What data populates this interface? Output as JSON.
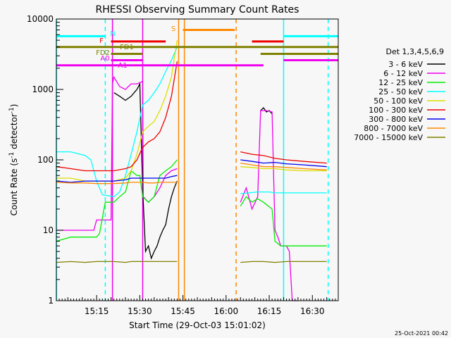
{
  "chart_data": {
    "type": "line",
    "title": "RHESSI Observing Summary Count Rates",
    "xlabel": "Start Time (29-Oct-03 15:01:02)",
    "ylabel_parts": [
      "Count Rate (s",
      "-1",
      " detector",
      "-1",
      ")"
    ],
    "yscale": "log",
    "xlim": [
      0,
      98
    ],
    "ylim": [
      1,
      10000
    ],
    "x_ticks": [
      {
        "x": 14,
        "label": "15:15"
      },
      {
        "x": 29,
        "label": "15:30"
      },
      {
        "x": 44,
        "label": "15:45"
      },
      {
        "x": 59,
        "label": "16:00"
      },
      {
        "x": 74,
        "label": "16:15"
      },
      {
        "x": 89,
        "label": "16:30"
      }
    ],
    "y_ticks": [
      {
        "y": 1,
        "label": "1"
      },
      {
        "y": 10,
        "label": "10"
      },
      {
        "y": 100,
        "label": "100"
      },
      {
        "y": 1000,
        "label": "1000"
      },
      {
        "y": 10000,
        "label": "10000"
      }
    ],
    "legend_title": "Det 1,3,4,5,6,9",
    "timestamp": "25-Oct-2021 00:42",
    "series": [
      {
        "name": "3 - 6 keV",
        "color": "#000000",
        "points": [
          [
            20,
            900
          ],
          [
            22,
            800
          ],
          [
            24,
            700
          ],
          [
            26,
            800
          ],
          [
            28,
            1000
          ],
          [
            29,
            1200
          ],
          [
            30,
            40
          ],
          [
            31,
            5
          ],
          [
            32,
            6
          ],
          [
            33,
            4
          ],
          [
            34,
            5
          ],
          [
            35,
            6
          ],
          [
            36,
            8
          ],
          [
            37,
            10
          ],
          [
            38,
            12
          ],
          [
            39,
            20
          ],
          [
            40,
            30
          ],
          [
            41,
            40
          ],
          [
            42,
            50
          ],
          [
            null,
            null
          ],
          [
            71,
            500
          ],
          [
            72,
            550
          ],
          [
            73,
            480
          ],
          [
            74,
            500
          ],
          [
            75,
            450
          ]
        ]
      },
      {
        "name": "6 - 12 keV",
        "color": "#ee00ee",
        "points": [
          [
            0,
            10
          ],
          [
            10,
            10
          ],
          [
            13,
            10
          ],
          [
            14,
            14
          ],
          [
            16,
            14
          ],
          [
            19,
            14
          ],
          [
            19.5,
            1200
          ],
          [
            20,
            1500
          ],
          [
            22,
            1100
          ],
          [
            24,
            1000
          ],
          [
            26,
            1200
          ],
          [
            28,
            1200
          ],
          [
            30,
            1300
          ],
          [
            30.2,
            30
          ],
          [
            32,
            25
          ],
          [
            34,
            30
          ],
          [
            36,
            40
          ],
          [
            38,
            60
          ],
          [
            40,
            70
          ],
          [
            42,
            75
          ],
          [
            null,
            null
          ],
          [
            64,
            25
          ],
          [
            66,
            40
          ],
          [
            68,
            20
          ],
          [
            70,
            30
          ],
          [
            71,
            500
          ],
          [
            73,
            500
          ],
          [
            75,
            480
          ],
          [
            76,
            10
          ],
          [
            77,
            8
          ],
          [
            78,
            6
          ],
          [
            80,
            6
          ],
          [
            81,
            5
          ],
          [
            82,
            1
          ],
          [
            84,
            1
          ]
        ]
      },
      {
        "name": "12 - 25 keV",
        "color": "#00ee00",
        "points": [
          [
            0,
            7
          ],
          [
            5,
            8
          ],
          [
            10,
            8
          ],
          [
            14,
            8
          ],
          [
            15,
            9
          ],
          [
            17,
            25
          ],
          [
            20,
            25
          ],
          [
            22,
            30
          ],
          [
            24,
            35
          ],
          [
            26,
            70
          ],
          [
            28,
            60
          ],
          [
            29,
            60
          ],
          [
            30,
            30
          ],
          [
            32,
            25
          ],
          [
            34,
            30
          ],
          [
            36,
            60
          ],
          [
            38,
            70
          ],
          [
            40,
            80
          ],
          [
            42,
            100
          ],
          [
            null,
            null
          ],
          [
            64,
            22
          ],
          [
            66,
            30
          ],
          [
            68,
            25
          ],
          [
            70,
            28
          ],
          [
            72,
            25
          ],
          [
            75,
            20
          ],
          [
            76,
            7
          ],
          [
            78,
            6
          ],
          [
            80,
            6
          ],
          [
            86,
            6
          ],
          [
            90,
            6
          ],
          [
            94,
            6
          ]
        ]
      },
      {
        "name": "25 - 50 keV",
        "color": "#00ffff",
        "points": [
          [
            0,
            130
          ],
          [
            5,
            130
          ],
          [
            10,
            115
          ],
          [
            12,
            100
          ],
          [
            13,
            70
          ],
          [
            14,
            50
          ],
          [
            16,
            32
          ],
          [
            20,
            30
          ],
          [
            22,
            35
          ],
          [
            24,
            60
          ],
          [
            26,
            120
          ],
          [
            28,
            250
          ],
          [
            30,
            600
          ],
          [
            32,
            700
          ],
          [
            34,
            900
          ],
          [
            36,
            1200
          ],
          [
            38,
            1800
          ],
          [
            40,
            2600
          ],
          [
            42,
            4000
          ],
          [
            null,
            null
          ],
          [
            64,
            33
          ],
          [
            70,
            35
          ],
          [
            74,
            35
          ],
          [
            76,
            34
          ],
          [
            80,
            34
          ],
          [
            86,
            34
          ],
          [
            94,
            34
          ]
        ]
      },
      {
        "name": "50 - 100 keV",
        "color": "#dddd00",
        "points": [
          [
            0,
            55
          ],
          [
            5,
            55
          ],
          [
            10,
            50
          ],
          [
            14,
            50
          ],
          [
            20,
            50
          ],
          [
            24,
            55
          ],
          [
            26,
            70
          ],
          [
            28,
            120
          ],
          [
            30,
            250
          ],
          [
            32,
            300
          ],
          [
            34,
            350
          ],
          [
            36,
            500
          ],
          [
            38,
            800
          ],
          [
            40,
            1500
          ],
          [
            42,
            5000
          ],
          [
            null,
            null
          ],
          [
            64,
            80
          ],
          [
            68,
            78
          ],
          [
            72,
            75
          ],
          [
            76,
            75
          ],
          [
            80,
            72
          ],
          [
            86,
            70
          ],
          [
            94,
            70
          ]
        ]
      },
      {
        "name": "100 - 300 keV",
        "color": "#ee0000",
        "points": [
          [
            0,
            80
          ],
          [
            5,
            75
          ],
          [
            10,
            70
          ],
          [
            14,
            70
          ],
          [
            20,
            70
          ],
          [
            24,
            75
          ],
          [
            26,
            80
          ],
          [
            28,
            100
          ],
          [
            30,
            150
          ],
          [
            32,
            180
          ],
          [
            34,
            200
          ],
          [
            36,
            250
          ],
          [
            38,
            400
          ],
          [
            40,
            800
          ],
          [
            42,
            2500
          ],
          [
            null,
            null
          ],
          [
            64,
            130
          ],
          [
            68,
            120
          ],
          [
            72,
            115
          ],
          [
            76,
            105
          ],
          [
            80,
            100
          ],
          [
            86,
            95
          ],
          [
            94,
            90
          ]
        ]
      },
      {
        "name": "300 - 800 keV",
        "color": "#0000ee",
        "points": [
          [
            0,
            50
          ],
          [
            5,
            48
          ],
          [
            10,
            50
          ],
          [
            14,
            50
          ],
          [
            20,
            50
          ],
          [
            24,
            52
          ],
          [
            26,
            55
          ],
          [
            28,
            55
          ],
          [
            30,
            55
          ],
          [
            32,
            55
          ],
          [
            34,
            55
          ],
          [
            36,
            55
          ],
          [
            38,
            55
          ],
          [
            40,
            58
          ],
          [
            42,
            60
          ],
          [
            null,
            null
          ],
          [
            64,
            100
          ],
          [
            68,
            95
          ],
          [
            72,
            90
          ],
          [
            76,
            92
          ],
          [
            80,
            88
          ],
          [
            86,
            85
          ],
          [
            94,
            80
          ]
        ]
      },
      {
        "name": "800 - 7000 keV",
        "color": "#ff8800",
        "points": [
          [
            0,
            48
          ],
          [
            5,
            47
          ],
          [
            10,
            47
          ],
          [
            14,
            46
          ],
          [
            20,
            46
          ],
          [
            24,
            47
          ],
          [
            26,
            48
          ],
          [
            28,
            48
          ],
          [
            30,
            48
          ],
          [
            32,
            47
          ],
          [
            34,
            47
          ],
          [
            36,
            48
          ],
          [
            38,
            48
          ],
          [
            40,
            48
          ],
          [
            42,
            48
          ],
          [
            null,
            null
          ],
          [
            64,
            90
          ],
          [
            68,
            85
          ],
          [
            72,
            80
          ],
          [
            76,
            80
          ],
          [
            80,
            78
          ],
          [
            86,
            75
          ],
          [
            94,
            72
          ]
        ]
      },
      {
        "name": "7000 - 15000 keV",
        "color": "#808000",
        "points": [
          [
            0,
            3.5
          ],
          [
            5,
            3.6
          ],
          [
            10,
            3.5
          ],
          [
            14,
            3.6
          ],
          [
            20,
            3.6
          ],
          [
            24,
            3.5
          ],
          [
            26,
            3.6
          ],
          [
            28,
            3.6
          ],
          [
            30,
            3.6
          ],
          [
            32,
            3.6
          ],
          [
            34,
            3.6
          ],
          [
            36,
            3.6
          ],
          [
            38,
            3.6
          ],
          [
            40,
            3.6
          ],
          [
            42,
            3.6
          ],
          [
            null,
            null
          ],
          [
            64,
            3.5
          ],
          [
            68,
            3.6
          ],
          [
            72,
            3.6
          ],
          [
            76,
            3.5
          ],
          [
            80,
            3.6
          ],
          [
            86,
            3.6
          ],
          [
            94,
            3.6
          ]
        ]
      }
    ],
    "state_bars": [
      {
        "label": "N",
        "color": "#00ffff",
        "y": 5700,
        "segments": [
          [
            0,
            17
          ],
          [
            79,
            98
          ]
        ]
      },
      {
        "label": "S",
        "color": "#ff8800",
        "y": 7000,
        "segments": [
          [
            44,
            62
          ]
        ]
      },
      {
        "label": "F",
        "color": "#ee0000",
        "y": 4800,
        "segments": [
          [
            19,
            38
          ],
          [
            68,
            79
          ]
        ]
      },
      {
        "label": "FD1",
        "color": "#808000",
        "y": 4000,
        "segments": [
          [
            0,
            98
          ]
        ]
      },
      {
        "label": "FD2",
        "color": "#808000",
        "y": 3200,
        "segments": [
          [
            19,
            30
          ],
          [
            71,
            98
          ]
        ]
      },
      {
        "label": "A0",
        "color": "#ee00ee",
        "y": 2600,
        "segments": [
          [
            19,
            30
          ],
          [
            79,
            98
          ]
        ]
      },
      {
        "label": "A1",
        "color": "#ee00ee",
        "y": 2200,
        "segments": [
          [
            0,
            72
          ]
        ]
      }
    ],
    "vertical_markers": [
      {
        "x": 0,
        "color": "#00ffff",
        "style": "solid"
      },
      {
        "x": 17,
        "color": "#00ffff",
        "style": "dashed"
      },
      {
        "x": 19.5,
        "color": "#ee00ee",
        "style": "solid"
      },
      {
        "x": 30,
        "color": "#ee00ee",
        "style": "solid"
      },
      {
        "x": 42.5,
        "color": "#ff8800",
        "style": "solid"
      },
      {
        "x": 44.5,
        "color": "#ff8800",
        "style": "solid"
      },
      {
        "x": 62.5,
        "color": "#ff8800",
        "style": "dashed"
      },
      {
        "x": 79,
        "color": "#00ffff",
        "style": "solid"
      },
      {
        "x": 94.5,
        "color": "#00ffff",
        "style": "dashed"
      }
    ]
  }
}
